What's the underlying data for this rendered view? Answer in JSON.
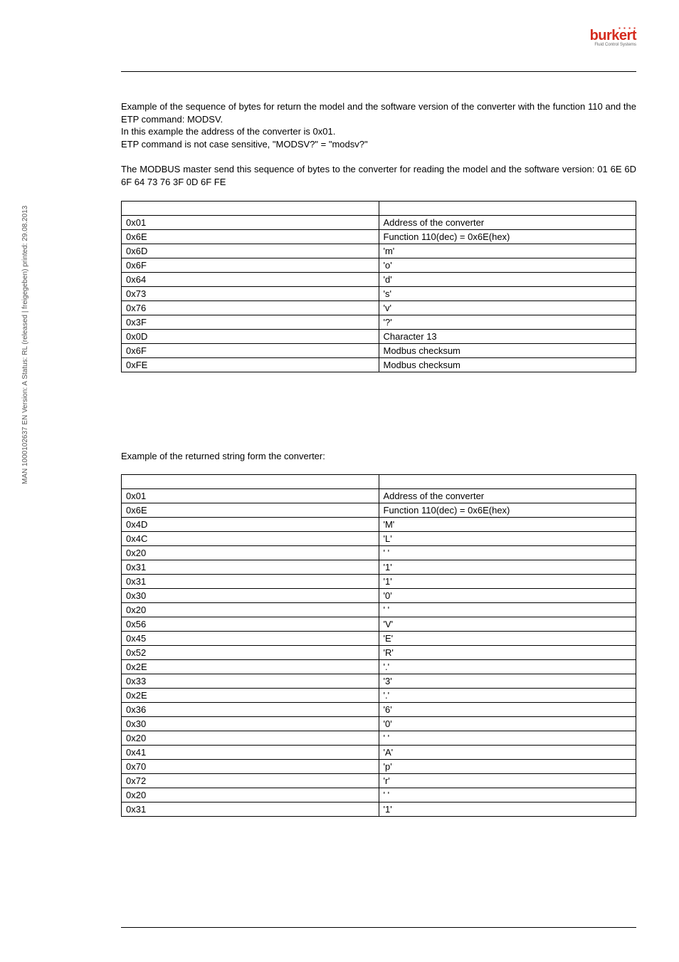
{
  "logo": {
    "brand": "burkert",
    "sub": "Fluid Control Systems"
  },
  "sideText": "MAN 1000102637 EN Version: A Status: RL (released | freigegeben) printed: 29.08.2013",
  "para1_l1": "Example of the sequence of bytes for return the model and the software version of the converter with the function 110 and the ETP command: MODSV.",
  "para1_l2": "In this example the address of the converter is 0x01.",
  "para1_l3": "ETP command is not case sensitive, \"MODSV?\" = \"modsv?\"",
  "para2": "The MODBUS master send this sequence of bytes to the converter for reading the model and the software version: 01 6E 6D 6F 64 73 76 3F 0D 6F FE",
  "table1": [
    [
      "0x01",
      "Address of the converter"
    ],
    [
      "0x6E",
      "Function 110(dec) = 0x6E(hex)"
    ],
    [
      "0x6D",
      "'m'"
    ],
    [
      "0x6F",
      "'o'"
    ],
    [
      "0x64",
      "'d'"
    ],
    [
      "0x73",
      "'s'"
    ],
    [
      "0x76",
      "'v'"
    ],
    [
      "0x3F",
      "'?'"
    ],
    [
      "0x0D",
      "Character 13"
    ],
    [
      "0x6F",
      "Modbus checksum"
    ],
    [
      "0xFE",
      "Modbus checksum"
    ]
  ],
  "returnedHeading": "Example of the returned string form the converter:",
  "table2": [
    [
      "0x01",
      "Address of the converter"
    ],
    [
      "0x6E",
      "Function 110(dec) = 0x6E(hex)"
    ],
    [
      "0x4D",
      "'M'"
    ],
    [
      "0x4C",
      "'L'"
    ],
    [
      "0x20",
      "' '"
    ],
    [
      "0x31",
      "'1'"
    ],
    [
      "0x31",
      "'1'"
    ],
    [
      "0x30",
      "'0'"
    ],
    [
      "0x20",
      "' '"
    ],
    [
      "0x56",
      "'V'"
    ],
    [
      "0x45",
      "'E'"
    ],
    [
      "0x52",
      "'R'"
    ],
    [
      "0x2E",
      "'.'"
    ],
    [
      "0x33",
      "'3'"
    ],
    [
      "0x2E",
      "'.'"
    ],
    [
      "0x36",
      "'6'"
    ],
    [
      "0x30",
      "'0'"
    ],
    [
      "0x20",
      "' '"
    ],
    [
      "0x41",
      "'A'"
    ],
    [
      "0x70",
      "'p'"
    ],
    [
      "0x72",
      "'r'"
    ],
    [
      "0x20",
      "' '"
    ],
    [
      "0x31",
      "'1'"
    ]
  ]
}
